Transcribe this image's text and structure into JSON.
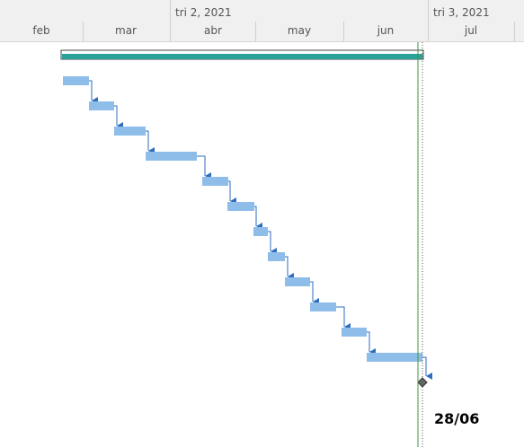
{
  "timescale": {
    "quarters": [
      {
        "label": "tri 2, 2021"
      },
      {
        "label": "tri 3, 2021"
      }
    ],
    "months": [
      {
        "label": "feb"
      },
      {
        "label": "mar"
      },
      {
        "label": "abr"
      },
      {
        "label": "may"
      },
      {
        "label": "jun"
      },
      {
        "label": "jul"
      }
    ]
  },
  "milestone": {
    "label": "28/06"
  },
  "colors": {
    "summary_bar": "#2aa198",
    "task_bar": "#8fbdea",
    "link": "#2f6ebf",
    "today_line": "#3a9a3a"
  }
}
